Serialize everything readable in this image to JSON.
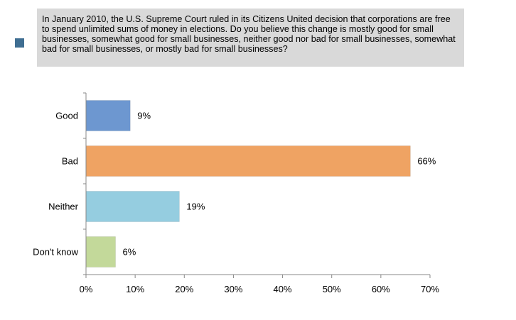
{
  "legend": {
    "question": "In January 2010, the U.S. Supreme Court ruled in its Citizens United decision that corporations are free to spend unlimited sums of money in elections. Do you believe this change is mostly good for small businesses, somewhat good for small businesses, neither good nor bad for small businesses, somewhat bad for small businesses, or mostly bad for small businesses?",
    "swatch_color": "#3f6e92"
  },
  "chart_data": {
    "type": "bar",
    "orientation": "horizontal",
    "title": "",
    "xlabel": "",
    "ylabel": "",
    "categories": [
      "Good",
      "Bad",
      "Neither",
      "Don't know"
    ],
    "values": [
      9,
      66,
      19,
      6
    ],
    "data_labels": [
      "9%",
      "66%",
      "19%",
      "6%"
    ],
    "colors": [
      "#6d97d0",
      "#efa363",
      "#95cde0",
      "#c3d99a"
    ],
    "xlim": [
      0,
      70
    ],
    "x_ticks": [
      0,
      10,
      20,
      30,
      40,
      50,
      60,
      70
    ],
    "x_tick_labels": [
      "0%",
      "10%",
      "20%",
      "30%",
      "40%",
      "50%",
      "60%",
      "70%"
    ],
    "grid": false,
    "legend": "none"
  }
}
